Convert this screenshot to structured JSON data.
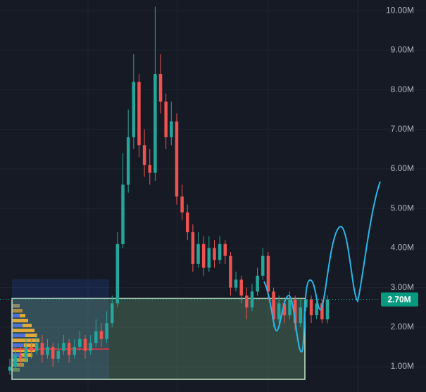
{
  "chart_data": {
    "type": "candlestick",
    "up_color": "#26a69a",
    "down_color": "#ef5350",
    "open": [
      900000,
      1000000,
      1300000,
      1200000,
      1500000,
      1400000,
      1600000,
      1300000,
      1500000,
      1200000,
      1400000,
      1600000,
      1300000,
      1500000,
      1700000,
      1400000,
      1600000,
      1900000,
      1700000,
      2100000,
      2600000,
      4100000,
      5600000,
      6800000,
      8200000,
      6600000,
      6100000,
      5900000,
      8400000,
      7700000,
      6800000,
      7200000,
      5300000,
      4900000,
      4400000,
      3600000,
      4100000,
      3500000,
      4000000,
      3700000,
      4100000,
      3800000,
      3000000,
      3200000,
      2800000,
      2500000,
      2900000,
      3300000,
      3800000,
      2900000,
      2200000,
      2600000,
      2300000,
      2700000,
      2100000,
      2500000,
      2700000,
      2300000,
      2600000,
      2200000
    ],
    "high": [
      1200000,
      1500000,
      1500000,
      1700000,
      1700000,
      1800000,
      1800000,
      1700000,
      1600000,
      1600000,
      1800000,
      1700000,
      1700000,
      1900000,
      1800000,
      1800000,
      2200000,
      2100000,
      2400000,
      2800000,
      4400000,
      6400000,
      7500000,
      8900000,
      8400000,
      7000000,
      6500000,
      10100000,
      8900000,
      7900000,
      7700000,
      7400000,
      5600000,
      5100000,
      4600000,
      4400000,
      4300000,
      4300000,
      4200000,
      4300000,
      4200000,
      3900000,
      3400000,
      3300000,
      3000000,
      3100000,
      3500000,
      4000000,
      3900000,
      3000000,
      2800000,
      2700000,
      2900000,
      2800000,
      2700000,
      2900000,
      2800000,
      2800000,
      2700000,
      2800000
    ],
    "low": [
      800000,
      900000,
      1000000,
      1100000,
      1200000,
      1300000,
      1100000,
      1200000,
      1000000,
      1100000,
      1300000,
      1100000,
      1200000,
      1400000,
      1200000,
      1300000,
      1500000,
      1500000,
      1600000,
      2000000,
      2500000,
      4000000,
      5400000,
      6500000,
      6300000,
      5800000,
      5600000,
      5700000,
      7400000,
      6500000,
      6600000,
      5100000,
      4700000,
      4200000,
      3400000,
      3500000,
      3300000,
      3400000,
      3500000,
      3600000,
      3600000,
      2800000,
      2900000,
      2600000,
      2200000,
      2400000,
      2800000,
      3200000,
      2700000,
      2000000,
      2100000,
      2100000,
      2200000,
      1900000,
      2000000,
      2400000,
      2100000,
      2200000,
      2100000,
      2100000
    ],
    "close": [
      1000000,
      1300000,
      1200000,
      1500000,
      1400000,
      1600000,
      1300000,
      1500000,
      1200000,
      1400000,
      1600000,
      1300000,
      1500000,
      1700000,
      1400000,
      1600000,
      1900000,
      1700000,
      2100000,
      2600000,
      4100000,
      5600000,
      6800000,
      8200000,
      6600000,
      6100000,
      5900000,
      8400000,
      7700000,
      6800000,
      7200000,
      5300000,
      4900000,
      4400000,
      3600000,
      4100000,
      3500000,
      4000000,
      3700000,
      4100000,
      3800000,
      3000000,
      3200000,
      2800000,
      2500000,
      2900000,
      3300000,
      3800000,
      2900000,
      2200000,
      2600000,
      2300000,
      2700000,
      2100000,
      2500000,
      2700000,
      2300000,
      2600000,
      2200000,
      2700000
    ],
    "ylim": [
      360000,
      10270000
    ],
    "yticks": [
      {
        "value": 1000000,
        "label": "1.00M"
      },
      {
        "value": 2000000,
        "label": "2.00M"
      },
      {
        "value": 3000000,
        "label": "3.00M"
      },
      {
        "value": 4000000,
        "label": "4.00M"
      },
      {
        "value": 5000000,
        "label": "5.00M"
      },
      {
        "value": 6000000,
        "label": "6.00M"
      },
      {
        "value": 7000000,
        "label": "7.00M"
      },
      {
        "value": 8000000,
        "label": "8.00M"
      },
      {
        "value": 9000000,
        "label": "9.00M"
      },
      {
        "value": 10000000,
        "label": "10.00M"
      }
    ],
    "last_price": {
      "value": 2700000,
      "label": "2.70M"
    },
    "last_price_color": "#089981",
    "grid": true
  }
}
